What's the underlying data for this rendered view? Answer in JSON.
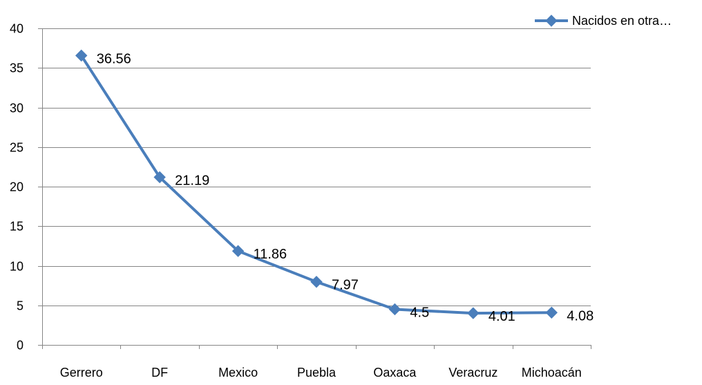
{
  "chart_data": {
    "type": "line",
    "title": "",
    "xlabel": "",
    "ylabel": "",
    "categories": [
      "Gerrero",
      "DF",
      "Mexico",
      "Puebla",
      "Oaxaca",
      "Veracruz",
      "Michoacán"
    ],
    "series": [
      {
        "name": "Nacidos en otra…",
        "values": [
          36.56,
          21.19,
          11.86,
          7.97,
          4.5,
          4.01,
          4.08
        ],
        "data_labels": [
          "36.56",
          "21.19",
          "11.86",
          "7.97",
          "4.5",
          "4.01",
          "4.08"
        ]
      }
    ],
    "ylim": [
      0,
      40
    ],
    "yticks": [
      0,
      5,
      10,
      15,
      20,
      25,
      30,
      35,
      40
    ],
    "grid": true,
    "legend_position": "top-right",
    "colors": {
      "series": "#4a7ebb",
      "gridline": "#868686",
      "axis": "#868686",
      "text": "#000000"
    },
    "marker": "diamond"
  }
}
